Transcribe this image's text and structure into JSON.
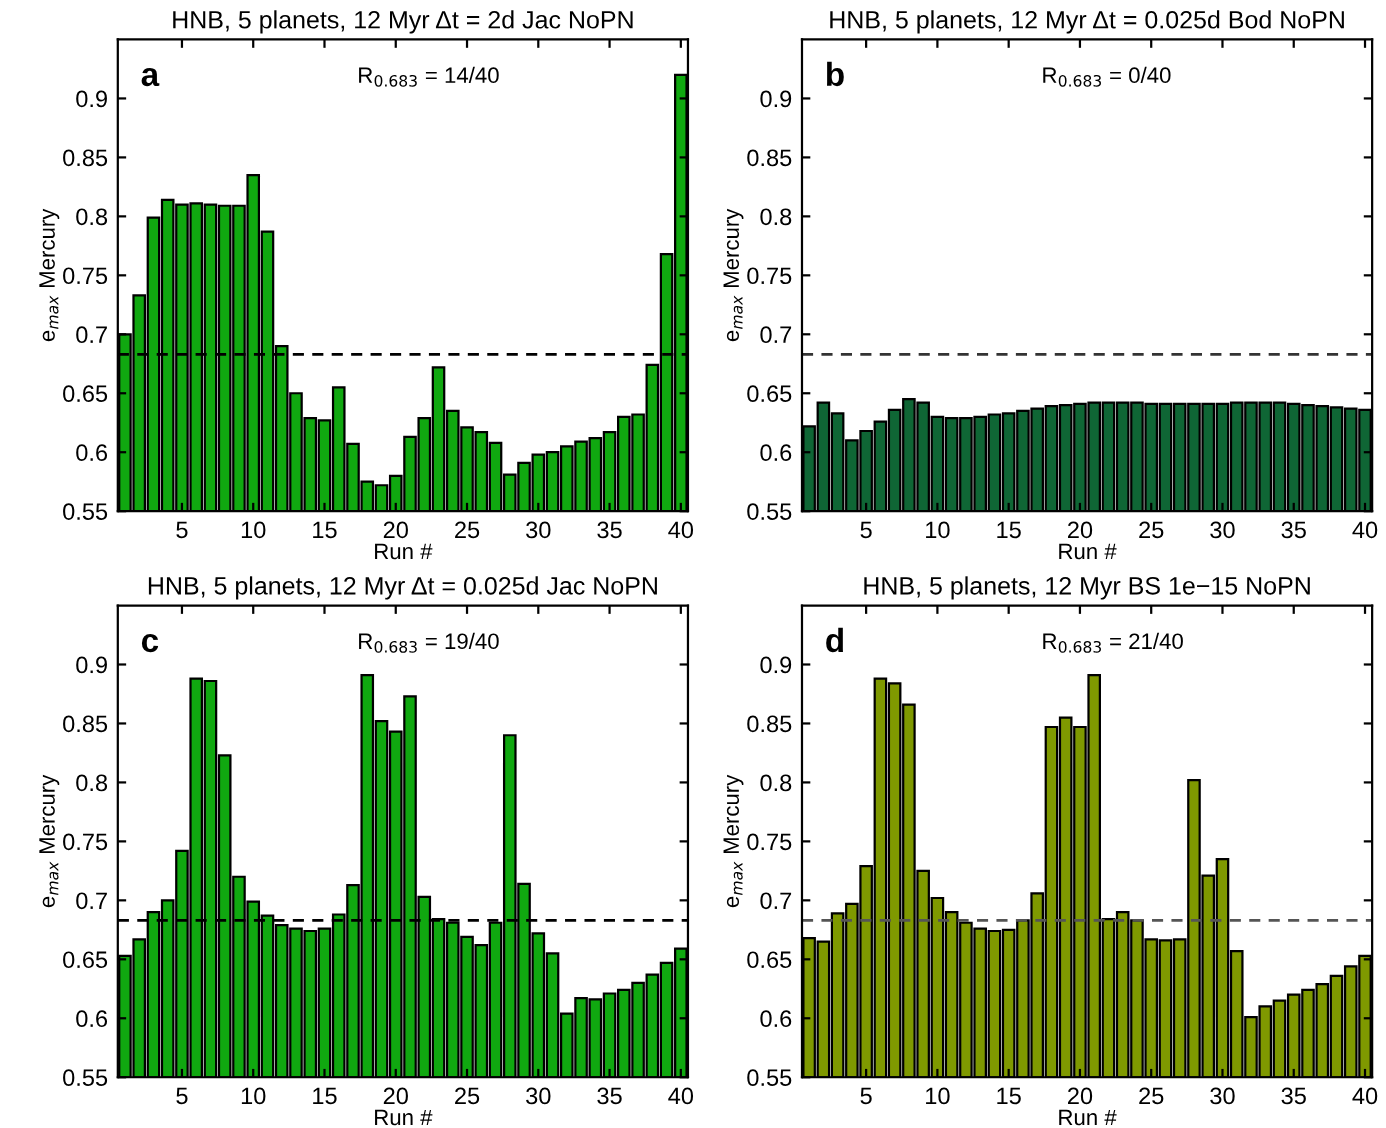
{
  "chart_data": [
    {
      "type": "bar",
      "title": "HNB, 5 planets, 12 Myr Δt = 2d Jac NoPN",
      "xlabel": "Run #",
      "ylabel": "e$_{max}$ Mercury",
      "annotations": [
        "a",
        "R$_{0.683}$ = 14/40"
      ],
      "x": [
        1,
        2,
        3,
        4,
        5,
        6,
        7,
        8,
        9,
        10,
        11,
        12,
        13,
        14,
        15,
        16,
        17,
        18,
        19,
        20,
        21,
        22,
        23,
        24,
        25,
        26,
        27,
        28,
        29,
        30,
        31,
        32,
        33,
        34,
        35,
        36,
        37,
        38,
        39,
        40
      ],
      "series": [
        {
          "color": "#10a810",
          "values": [
            0.7,
            0.733,
            0.799,
            0.814,
            0.81,
            0.811,
            0.81,
            0.809,
            0.809,
            0.835,
            0.787,
            0.69,
            0.65,
            0.629,
            0.627,
            0.655,
            0.607,
            0.575,
            0.572,
            0.58,
            0.613,
            0.629,
            0.672,
            0.635,
            0.621,
            0.617,
            0.608,
            0.581,
            0.591,
            0.598,
            0.6,
            0.605,
            0.609,
            0.612,
            0.617,
            0.63,
            0.632,
            0.674,
            0.768,
            0.92
          ]
        }
      ],
      "xlim": [
        0.5,
        40.5
      ],
      "xticks": [
        5,
        10,
        15,
        20,
        25,
        30,
        35,
        40
      ],
      "ylim": [
        0.55,
        0.95
      ],
      "yticks": [
        0.55,
        0.6,
        0.65,
        0.7,
        0.75,
        0.8,
        0.85,
        0.9
      ],
      "ref_lines": [
        {
          "axis": "y",
          "value": 0.683,
          "line_style": "dashed",
          "color": "#000000"
        }
      ],
      "grid": false,
      "legend": false
    },
    {
      "type": "bar",
      "title": "HNB, 5 planets, 12 Myr Δt = 0.025d Bod NoPN",
      "xlabel": "Run #",
      "ylabel": "e$_{max}$ Mercury",
      "annotations": [
        "b",
        "R$_{0.683}$ = 0/40"
      ],
      "x": [
        1,
        2,
        3,
        4,
        5,
        6,
        7,
        8,
        9,
        10,
        11,
        12,
        13,
        14,
        15,
        16,
        17,
        18,
        19,
        20,
        21,
        22,
        23,
        24,
        25,
        26,
        27,
        28,
        29,
        30,
        31,
        32,
        33,
        34,
        35,
        36,
        37,
        38,
        39,
        40
      ],
      "series": [
        {
          "color": "#0f6635",
          "values": [
            0.622,
            0.642,
            0.633,
            0.61,
            0.618,
            0.626,
            0.636,
            0.645,
            0.642,
            0.63,
            0.629,
            0.629,
            0.63,
            0.632,
            0.633,
            0.635,
            0.637,
            0.639,
            0.64,
            0.641,
            0.642,
            0.642,
            0.642,
            0.642,
            0.641,
            0.641,
            0.641,
            0.641,
            0.641,
            0.641,
            0.642,
            0.642,
            0.642,
            0.642,
            0.641,
            0.64,
            0.639,
            0.638,
            0.637,
            0.636
          ]
        }
      ],
      "xlim": [
        0.5,
        40.5
      ],
      "xticks": [
        5,
        10,
        15,
        20,
        25,
        30,
        35,
        40
      ],
      "ylim": [
        0.55,
        0.95
      ],
      "yticks": [
        0.55,
        0.6,
        0.65,
        0.7,
        0.75,
        0.8,
        0.85,
        0.9
      ],
      "ref_lines": [
        {
          "axis": "y",
          "value": 0.683,
          "line_style": "dashed",
          "color": "#333333"
        }
      ],
      "grid": false,
      "legend": false
    },
    {
      "type": "bar",
      "title": "HNB, 5 planets, 12 Myr Δt = 0.025d Jac NoPN",
      "xlabel": "Run #",
      "ylabel": "e$_{max}$ Mercury",
      "annotations": [
        "c",
        "R$_{0.683}$ = 19/40"
      ],
      "x": [
        1,
        2,
        3,
        4,
        5,
        6,
        7,
        8,
        9,
        10,
        11,
        12,
        13,
        14,
        15,
        16,
        17,
        18,
        19,
        20,
        21,
        22,
        23,
        24,
        25,
        26,
        27,
        28,
        29,
        30,
        31,
        32,
        33,
        34,
        35,
        36,
        37,
        38,
        39,
        40
      ],
      "series": [
        {
          "color": "#10a810",
          "values": [
            0.653,
            0.667,
            0.69,
            0.7,
            0.742,
            0.888,
            0.886,
            0.823,
            0.72,
            0.699,
            0.687,
            0.679,
            0.676,
            0.674,
            0.676,
            0.688,
            0.713,
            0.891,
            0.852,
            0.843,
            0.873,
            0.703,
            0.684,
            0.681,
            0.669,
            0.662,
            0.681,
            0.84,
            0.714,
            0.672,
            0.655,
            0.604,
            0.617,
            0.616,
            0.621,
            0.624,
            0.63,
            0.637,
            0.647,
            0.659
          ]
        }
      ],
      "xlim": [
        0.5,
        40.5
      ],
      "xticks": [
        5,
        10,
        15,
        20,
        25,
        30,
        35,
        40
      ],
      "ylim": [
        0.55,
        0.95
      ],
      "yticks": [
        0.55,
        0.6,
        0.65,
        0.7,
        0.75,
        0.8,
        0.85,
        0.9
      ],
      "ref_lines": [
        {
          "axis": "y",
          "value": 0.683,
          "line_style": "dashed",
          "color": "#000000"
        }
      ],
      "grid": false,
      "legend": false
    },
    {
      "type": "bar",
      "title": "HNB, 5 planets, 12 Myr BS 1e−15 NoPN",
      "xlabel": "Run #",
      "ylabel": "e$_{max}$ Mercury",
      "annotations": [
        "d",
        "R$_{0.683}$ = 21/40"
      ],
      "x": [
        1,
        2,
        3,
        4,
        5,
        6,
        7,
        8,
        9,
        10,
        11,
        12,
        13,
        14,
        15,
        16,
        17,
        18,
        19,
        20,
        21,
        22,
        23,
        24,
        25,
        26,
        27,
        28,
        29,
        30,
        31,
        32,
        33,
        34,
        35,
        36,
        37,
        38,
        39,
        40
      ],
      "series": [
        {
          "color": "#7f9900",
          "values": [
            0.668,
            0.665,
            0.689,
            0.697,
            0.729,
            0.888,
            0.884,
            0.866,
            0.725,
            0.702,
            0.69,
            0.681,
            0.676,
            0.674,
            0.675,
            0.683,
            0.706,
            0.847,
            0.855,
            0.847,
            0.891,
            0.684,
            0.69,
            0.683,
            0.667,
            0.666,
            0.667,
            0.802,
            0.721,
            0.735,
            0.657,
            0.601,
            0.61,
            0.615,
            0.62,
            0.624,
            0.629,
            0.636,
            0.644,
            0.653
          ]
        }
      ],
      "xlim": [
        0.5,
        40.5
      ],
      "xticks": [
        5,
        10,
        15,
        20,
        25,
        30,
        35,
        40
      ],
      "ylim": [
        0.55,
        0.95
      ],
      "yticks": [
        0.55,
        0.6,
        0.65,
        0.7,
        0.75,
        0.8,
        0.85,
        0.9
      ],
      "ref_lines": [
        {
          "axis": "y",
          "value": 0.683,
          "line_style": "dashed",
          "color": "#555555"
        }
      ],
      "grid": false,
      "legend": false
    }
  ]
}
